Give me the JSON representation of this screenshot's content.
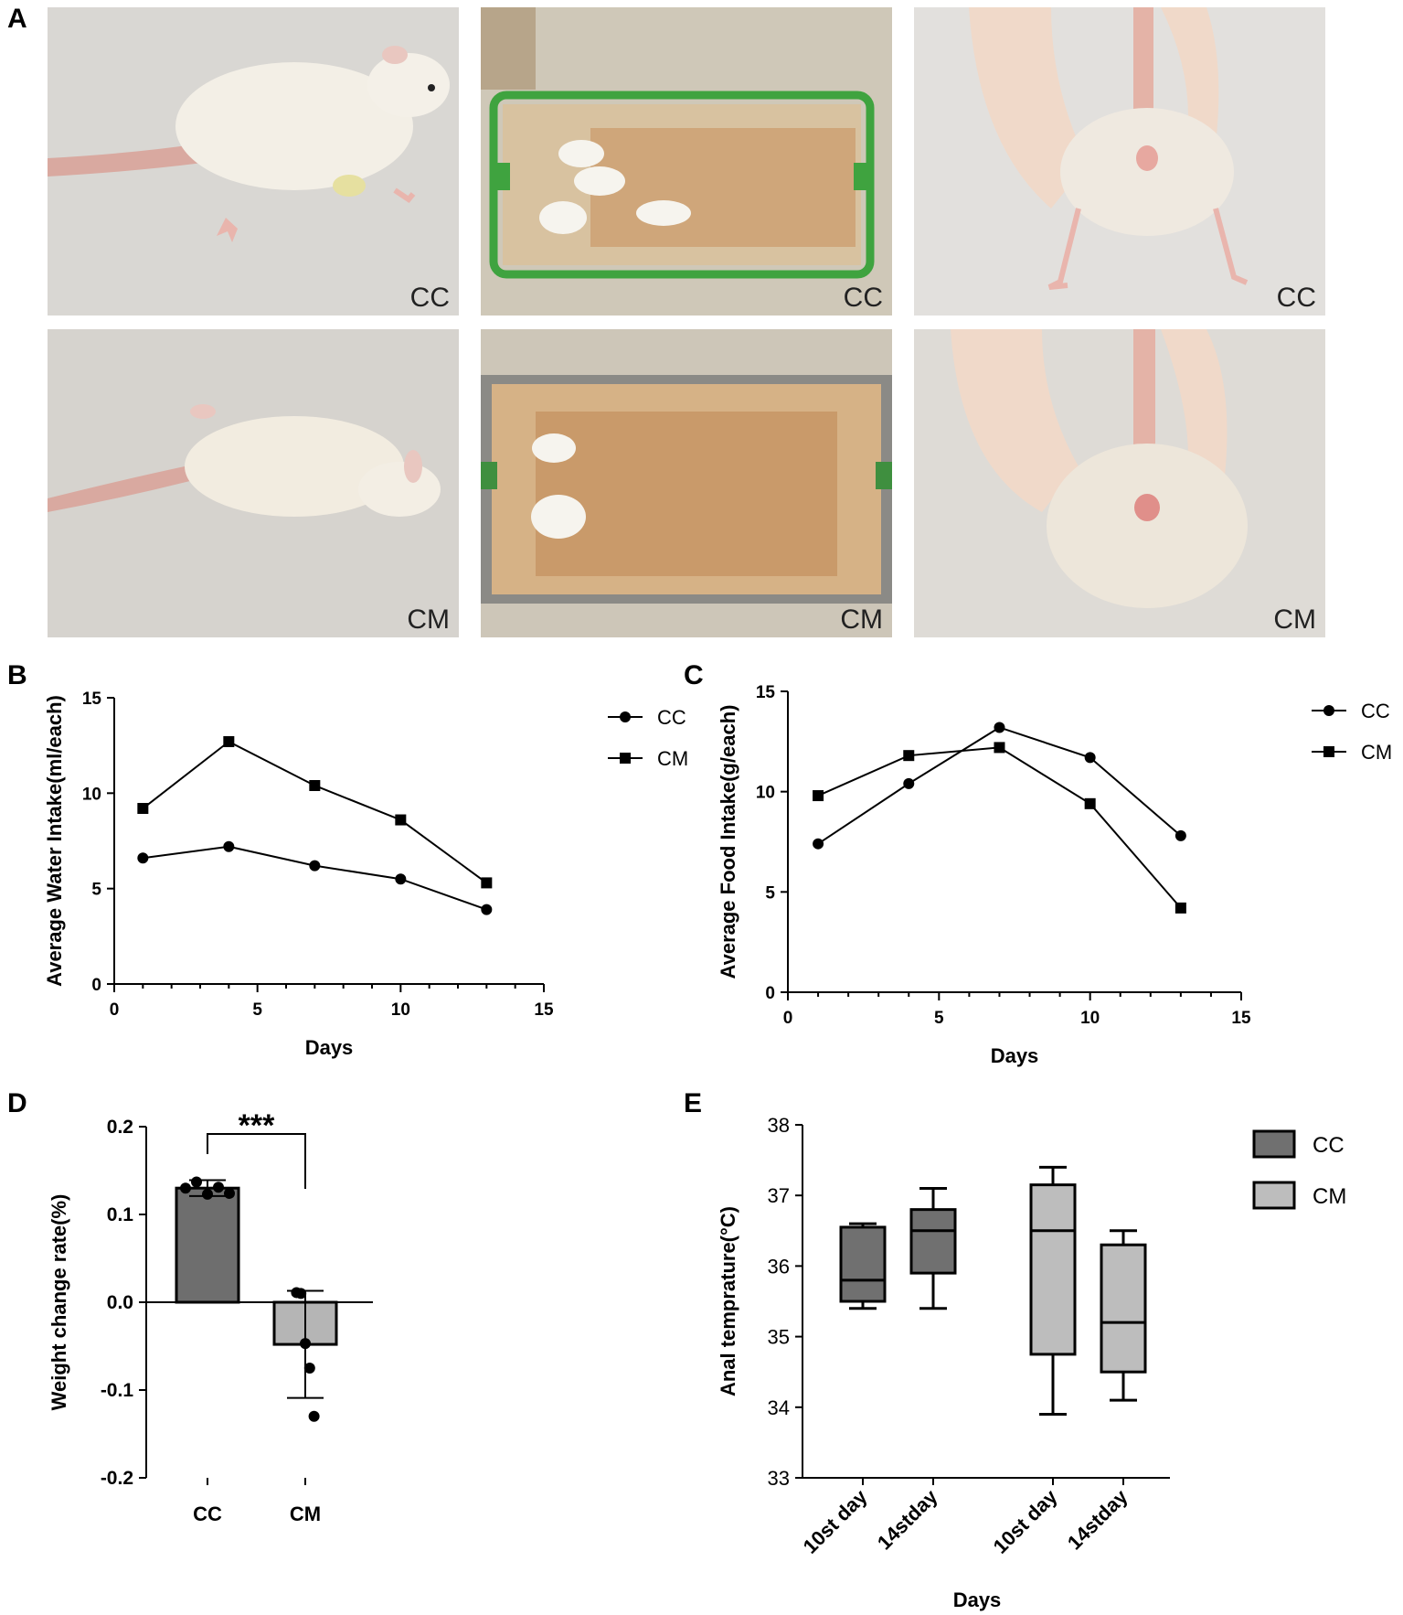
{
  "panels": {
    "a": {
      "letter": "A"
    },
    "b": {
      "letter": "B"
    },
    "c": {
      "letter": "C"
    },
    "d": {
      "letter": "D"
    },
    "e": {
      "letter": "E"
    }
  },
  "photos": [
    {
      "label": "CC",
      "subject": "rat-side-view",
      "bg": "#d9d7d3"
    },
    {
      "label": "CC",
      "subject": "cage-with-rats",
      "bg": "#d8c8a8"
    },
    {
      "label": "CC",
      "subject": "rat-ventral-view",
      "bg": "#e0dedb"
    },
    {
      "label": "CM",
      "subject": "rat-side-view",
      "bg": "#d6d3ce"
    },
    {
      "label": "CM",
      "subject": "cage-with-rats",
      "bg": "#c9a97c"
    },
    {
      "label": "CM",
      "subject": "rat-ventral-view",
      "bg": "#dddad5"
    }
  ],
  "chart_data": [
    {
      "id": "B",
      "type": "line",
      "xlabel": "Days",
      "ylabel": "Average Water Intake(ml/each)",
      "xlim": [
        0,
        15
      ],
      "ylim": [
        0,
        15
      ],
      "xticks": [
        0,
        5,
        10,
        15
      ],
      "yticks": [
        0,
        5,
        10,
        15
      ],
      "x": [
        1,
        4,
        7,
        10,
        13
      ],
      "series": [
        {
          "name": "CC",
          "marker": "circle",
          "values": [
            6.6,
            7.2,
            6.2,
            5.5,
            3.9
          ]
        },
        {
          "name": "CM",
          "marker": "square",
          "values": [
            9.2,
            12.7,
            10.4,
            8.6,
            5.3
          ]
        }
      ],
      "legend": "top-right"
    },
    {
      "id": "C",
      "type": "line",
      "xlabel": "Days",
      "ylabel": "Average Food Intake(g/each)",
      "xlim": [
        0,
        15
      ],
      "ylim": [
        0,
        15
      ],
      "xticks": [
        0,
        5,
        10,
        15
      ],
      "yticks": [
        0,
        5,
        10,
        15
      ],
      "x": [
        1,
        4,
        7,
        10,
        13
      ],
      "series": [
        {
          "name": "CC",
          "marker": "circle",
          "values": [
            7.4,
            10.4,
            13.2,
            11.7,
            7.8
          ]
        },
        {
          "name": "CM",
          "marker": "square",
          "values": [
            9.8,
            11.8,
            12.2,
            9.4,
            4.2
          ]
        }
      ],
      "legend": "top-right"
    },
    {
      "id": "D",
      "type": "bar",
      "ylabel": "Weight change rate(%)",
      "ylim": [
        -0.2,
        0.2
      ],
      "yticks": [
        "0.2",
        "0.1",
        "0.0",
        "-0.1",
        "-0.2"
      ],
      "categories": [
        "CC",
        "CM"
      ],
      "values": [
        0.13,
        -0.048
      ],
      "sd": [
        0.009,
        0.061
      ],
      "points": [
        [
          0.13,
          0.137,
          0.123,
          0.131,
          0.124
        ],
        [
          0.011,
          0.01,
          -0.047,
          -0.075,
          -0.13
        ]
      ],
      "significance": "***",
      "colors": [
        "#6e6e6e",
        "#b5b5b5"
      ]
    },
    {
      "id": "E",
      "type": "box",
      "xlabel": "Days",
      "ylabel": "Anal temprature(°C)",
      "ylim": [
        33,
        38
      ],
      "yticks": [
        33,
        34,
        35,
        36,
        37,
        38
      ],
      "categories": [
        "10st day",
        "14stday",
        "10st day",
        "14stday"
      ],
      "boxes": [
        {
          "group": "CC",
          "min": 35.4,
          "q1": 35.5,
          "median": 35.8,
          "q3": 36.55,
          "max": 36.6
        },
        {
          "group": "CC",
          "min": 35.4,
          "q1": 35.9,
          "median": 36.5,
          "q3": 36.8,
          "max": 37.1
        },
        {
          "group": "CM",
          "min": 33.9,
          "q1": 34.75,
          "median": 36.5,
          "q3": 37.15,
          "max": 37.4
        },
        {
          "group": "CM",
          "min": 34.1,
          "q1": 34.5,
          "median": 35.2,
          "q3": 36.3,
          "max": 36.5
        }
      ],
      "legend_entries": [
        {
          "name": "CC",
          "color": "#707070"
        },
        {
          "name": "CM",
          "color": "#bdbdbd"
        }
      ],
      "legend": "top-right"
    }
  ]
}
